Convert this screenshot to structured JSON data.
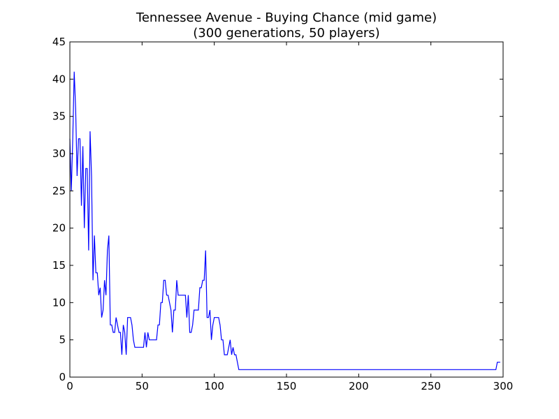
{
  "chart_data": {
    "type": "line",
    "title": [
      "Tennessee Avenue - Buying Chance (mid game)",
      "(300 generations, 50 players)"
    ],
    "xlabel": "",
    "ylabel": "",
    "xlim": [
      0,
      300
    ],
    "ylim": [
      0,
      45
    ],
    "xticks": [
      0,
      50,
      100,
      150,
      200,
      250,
      300
    ],
    "yticks": [
      0,
      5,
      10,
      15,
      20,
      25,
      30,
      35,
      40,
      45
    ],
    "grid": false,
    "series": [
      {
        "color": "#0000ff",
        "points": [
          [
            0,
            32
          ],
          [
            1,
            25
          ],
          [
            2,
            32
          ],
          [
            3,
            41
          ],
          [
            4,
            36
          ],
          [
            5,
            27
          ],
          [
            6,
            32
          ],
          [
            7,
            32
          ],
          [
            8,
            23
          ],
          [
            9,
            31
          ],
          [
            10,
            20
          ],
          [
            11,
            28
          ],
          [
            12,
            28
          ],
          [
            13,
            17
          ],
          [
            14,
            33
          ],
          [
            15,
            27
          ],
          [
            16,
            13
          ],
          [
            17,
            19
          ],
          [
            18,
            14
          ],
          [
            19,
            14
          ],
          [
            20,
            11
          ],
          [
            21,
            12
          ],
          [
            22,
            8
          ],
          [
            23,
            9
          ],
          [
            24,
            13
          ],
          [
            25,
            11
          ],
          [
            26,
            17
          ],
          [
            27,
            19
          ],
          [
            28,
            7
          ],
          [
            29,
            7
          ],
          [
            30,
            6
          ],
          [
            31,
            6
          ],
          [
            32,
            8
          ],
          [
            33,
            7
          ],
          [
            34,
            6
          ],
          [
            35,
            6
          ],
          [
            36,
            3
          ],
          [
            37,
            7
          ],
          [
            38,
            6
          ],
          [
            39,
            3
          ],
          [
            40,
            8
          ],
          [
            41,
            8
          ],
          [
            42,
            8
          ],
          [
            43,
            7
          ],
          [
            44,
            5
          ],
          [
            45,
            4
          ],
          [
            46,
            4
          ],
          [
            47,
            4
          ],
          [
            48,
            4
          ],
          [
            49,
            4
          ],
          [
            50,
            4
          ],
          [
            51,
            4
          ],
          [
            52,
            6
          ],
          [
            53,
            4
          ],
          [
            54,
            6
          ],
          [
            55,
            5
          ],
          [
            56,
            5
          ],
          [
            57,
            5
          ],
          [
            58,
            5
          ],
          [
            59,
            5
          ],
          [
            60,
            5
          ],
          [
            61,
            7
          ],
          [
            62,
            7
          ],
          [
            63,
            10
          ],
          [
            64,
            10
          ],
          [
            65,
            13
          ],
          [
            66,
            13
          ],
          [
            67,
            11
          ],
          [
            68,
            11
          ],
          [
            69,
            10
          ],
          [
            70,
            9
          ],
          [
            71,
            6
          ],
          [
            72,
            9
          ],
          [
            73,
            9
          ],
          [
            74,
            13
          ],
          [
            75,
            11
          ],
          [
            76,
            11
          ],
          [
            77,
            11
          ],
          [
            78,
            11
          ],
          [
            79,
            11
          ],
          [
            80,
            11
          ],
          [
            81,
            8
          ],
          [
            82,
            11
          ],
          [
            83,
            6
          ],
          [
            84,
            6
          ],
          [
            85,
            7
          ],
          [
            86,
            9
          ],
          [
            87,
            9
          ],
          [
            88,
            9
          ],
          [
            89,
            9
          ],
          [
            90,
            12
          ],
          [
            91,
            12
          ],
          [
            92,
            13
          ],
          [
            93,
            13
          ],
          [
            94,
            17
          ],
          [
            95,
            8
          ],
          [
            96,
            8
          ],
          [
            97,
            9
          ],
          [
            98,
            5
          ],
          [
            99,
            7
          ],
          [
            100,
            8
          ],
          [
            101,
            8
          ],
          [
            102,
            8
          ],
          [
            103,
            8
          ],
          [
            104,
            7
          ],
          [
            105,
            5
          ],
          [
            106,
            5
          ],
          [
            107,
            3
          ],
          [
            108,
            3
          ],
          [
            109,
            3
          ],
          [
            110,
            4
          ],
          [
            111,
            5
          ],
          [
            112,
            3
          ],
          [
            113,
            4
          ],
          [
            114,
            3
          ],
          [
            115,
            3
          ],
          [
            116,
            2
          ],
          [
            117,
            1
          ],
          [
            118,
            1
          ],
          [
            295,
            1
          ],
          [
            296,
            2
          ],
          [
            297,
            2
          ],
          [
            298,
            2
          ]
        ]
      }
    ]
  }
}
